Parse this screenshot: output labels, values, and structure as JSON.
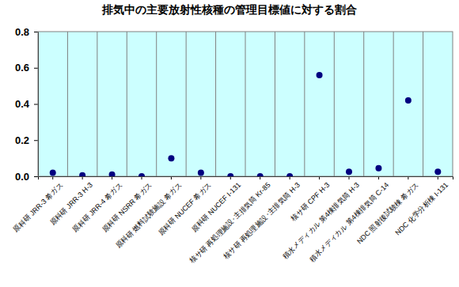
{
  "chart_data": {
    "type": "scatter",
    "title": "排気中の主要放射性核種の管理目標値に対する割合",
    "categories": [
      "原科研 JRR-3 希ガス",
      "原科研 JRR-3 H-3",
      "原科研 JRR-4 希ガス",
      "原科研 NSRR 希ガス",
      "原科研 燃料試験施設 希ガス",
      "原科研 NUCEF 希ガス",
      "原科研 NUCEF I-131",
      "核サ研 再処理施設･主排気筒 Kr-85",
      "核サ研 再処理施設･主排気筒 H-3",
      "核サ研 CPF H-3",
      "積水メディカル 第4棟排気筒 H-3",
      "積水メディカル 第4棟排気筒 C-14",
      "NDC 照射後試験棟 希ガス",
      "NDC 化学分析棟 I-131"
    ],
    "values": [
      0.02,
      0.005,
      0.01,
      0.0,
      0.1,
      0.02,
      0.0,
      0.0,
      0.0,
      0.56,
      0.025,
      0.045,
      0.42,
      0.025
    ],
    "color": "#000080",
    "marker": "circle",
    "ylim": [
      0,
      0.8
    ],
    "yticks": [
      {
        "value": 0,
        "label": "0.0"
      },
      0.2,
      0.4,
      0.6,
      0.8
    ],
    "grid": true
  }
}
